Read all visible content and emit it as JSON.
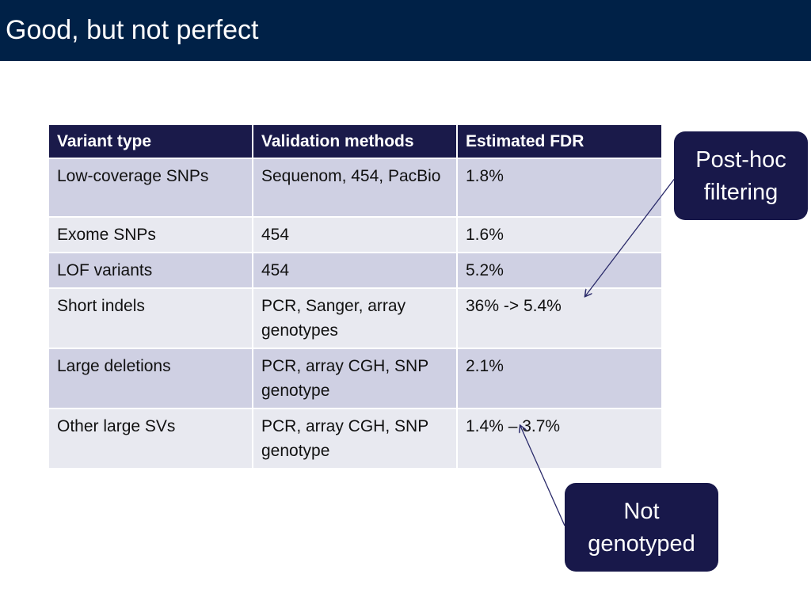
{
  "slide": {
    "title": "Good, but not perfect"
  },
  "table": {
    "headers": [
      "Variant type",
      "Validation methods",
      "Estimated FDR"
    ],
    "rows": [
      [
        "Low-coverage SNPs",
        "Sequenom, 454, PacBio",
        "1.8%"
      ],
      [
        "Exome SNPs",
        "454",
        "1.6%"
      ],
      [
        "LOF variants",
        "454",
        "5.2%"
      ],
      [
        "Short indels",
        "PCR, Sanger, array genotypes",
        "36% -> 5.4%"
      ],
      [
        "Large deletions",
        "PCR, array CGH, SNP genotype",
        "2.1%"
      ],
      [
        "Other large SVs",
        "PCR, array CGH, SNP genotype",
        "1.4% – 3.7%"
      ]
    ]
  },
  "callouts": {
    "posthoc": {
      "line1": "Post-hoc",
      "line2": "filtering"
    },
    "notgenotyped": {
      "line1": "Not",
      "line2": "genotyped"
    }
  },
  "colors": {
    "title_bar": "#002147",
    "header_row": "#1a1a4a",
    "row_dark": "#cfd0e3",
    "row_light": "#e8e9f0",
    "callout": "#18184a",
    "arrow": "#2a2a6a"
  }
}
